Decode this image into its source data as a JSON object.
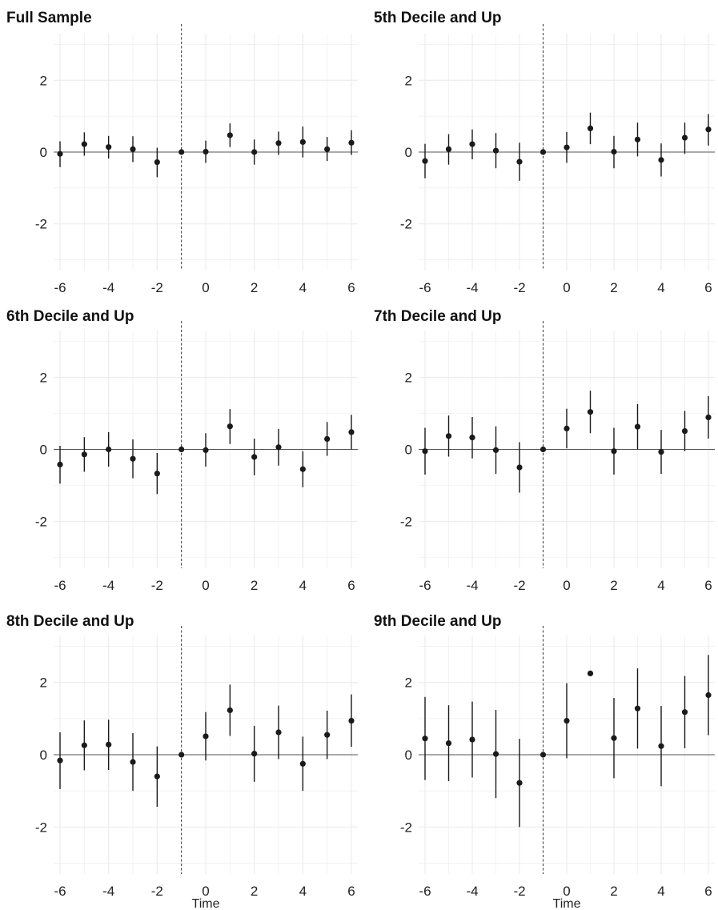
{
  "colors": {
    "grid": "#ebebeb",
    "zero_line": "#555555",
    "event_line": "#333333",
    "points": "#1a1a1a"
  },
  "chart_data": [
    {
      "type": "scatter",
      "title": "Full Sample",
      "xlabel": "",
      "ylabel": "",
      "xlim": [
        -6,
        6
      ],
      "ylim": [
        -3.3,
        3.3
      ],
      "xticks": [
        -6,
        -4,
        -2,
        0,
        2,
        4,
        6
      ],
      "yticks": [
        -2,
        0,
        2
      ],
      "event_line_x": -1,
      "grid": true,
      "x": [
        -6,
        -5,
        -4,
        -3,
        -2,
        -1,
        0,
        1,
        2,
        3,
        4,
        5,
        6
      ],
      "y": [
        -0.05,
        0.22,
        0.14,
        0.08,
        -0.28,
        0.0,
        0.01,
        0.47,
        0.0,
        0.25,
        0.28,
        0.08,
        0.26
      ],
      "lower": [
        -0.42,
        -0.1,
        -0.18,
        -0.28,
        -0.7,
        null,
        -0.3,
        0.14,
        -0.35,
        -0.08,
        -0.15,
        -0.25,
        -0.08
      ],
      "upper": [
        0.3,
        0.55,
        0.45,
        0.44,
        0.12,
        null,
        0.32,
        0.8,
        0.35,
        0.57,
        0.71,
        0.42,
        0.61
      ]
    },
    {
      "type": "scatter",
      "title": "5th Decile and Up",
      "xlabel": "",
      "ylabel": "",
      "xlim": [
        -6,
        6
      ],
      "ylim": [
        -3.3,
        3.3
      ],
      "xticks": [
        -6,
        -4,
        -2,
        0,
        2,
        4,
        6
      ],
      "yticks": [
        -2,
        0,
        2
      ],
      "event_line_x": -1,
      "grid": true,
      "x": [
        -6,
        -5,
        -4,
        -3,
        -2,
        -1,
        0,
        1,
        2,
        3,
        4,
        5,
        6
      ],
      "y": [
        -0.25,
        0.08,
        0.22,
        0.04,
        -0.27,
        0.0,
        0.13,
        0.66,
        0.01,
        0.35,
        -0.22,
        0.4,
        0.63
      ],
      "lower": [
        -0.73,
        -0.35,
        -0.2,
        -0.45,
        -0.8,
        null,
        -0.3,
        0.22,
        -0.45,
        -0.12,
        -0.68,
        -0.05,
        0.18
      ],
      "upper": [
        0.23,
        0.5,
        0.63,
        0.53,
        0.26,
        null,
        0.56,
        1.1,
        0.45,
        0.82,
        0.24,
        0.82,
        1.06
      ]
    },
    {
      "type": "scatter",
      "title": "6th Decile and Up",
      "xlabel": "",
      "ylabel": "",
      "xlim": [
        -6,
        6
      ],
      "ylim": [
        -3.3,
        3.3
      ],
      "xticks": [
        -6,
        -4,
        -2,
        0,
        2,
        4,
        6
      ],
      "yticks": [
        -2,
        0,
        2
      ],
      "event_line_x": -1,
      "grid": true,
      "x": [
        -6,
        -5,
        -4,
        -3,
        -2,
        -1,
        0,
        1,
        2,
        3,
        4,
        5,
        6
      ],
      "y": [
        -0.42,
        -0.14,
        0.0,
        -0.26,
        -0.67,
        0.0,
        -0.02,
        0.64,
        -0.21,
        0.06,
        -0.55,
        0.29,
        0.48
      ],
      "lower": [
        -0.95,
        -0.62,
        -0.48,
        -0.8,
        -1.24,
        null,
        -0.48,
        0.15,
        -0.72,
        -0.45,
        -1.05,
        -0.18,
        0.0
      ],
      "upper": [
        0.1,
        0.34,
        0.48,
        0.28,
        -0.1,
        null,
        0.45,
        1.12,
        0.3,
        0.57,
        -0.05,
        0.76,
        0.96
      ]
    },
    {
      "type": "scatter",
      "title": "7th Decile and Up",
      "xlabel": "",
      "ylabel": "",
      "xlim": [
        -6,
        6
      ],
      "ylim": [
        -3.3,
        3.3
      ],
      "xticks": [
        -6,
        -4,
        -2,
        0,
        2,
        4,
        6
      ],
      "yticks": [
        -2,
        0,
        2
      ],
      "event_line_x": -1,
      "grid": true,
      "x": [
        -6,
        -5,
        -4,
        -3,
        -2,
        -1,
        0,
        1,
        2,
        3,
        4,
        5,
        6
      ],
      "y": [
        -0.05,
        0.37,
        0.33,
        -0.02,
        -0.5,
        0.0,
        0.58,
        1.04,
        -0.05,
        0.63,
        -0.07,
        0.51,
        0.89
      ],
      "lower": [
        -0.7,
        -0.2,
        -0.25,
        -0.68,
        -1.2,
        null,
        0.03,
        0.45,
        -0.7,
        0.0,
        -0.68,
        -0.05,
        0.3
      ],
      "upper": [
        0.6,
        0.94,
        0.9,
        0.64,
        0.2,
        null,
        1.13,
        1.63,
        0.6,
        1.26,
        0.54,
        1.07,
        1.48
      ]
    },
    {
      "type": "scatter",
      "title": "8th Decile and Up",
      "xlabel": "Time",
      "ylabel": "",
      "xlim": [
        -6,
        6
      ],
      "ylim": [
        -3.3,
        3.3
      ],
      "xticks": [
        -6,
        -4,
        -2,
        0,
        2,
        4,
        6
      ],
      "yticks": [
        -2,
        0,
        2
      ],
      "event_line_x": -1,
      "grid": true,
      "x": [
        -6,
        -5,
        -4,
        -3,
        -2,
        -1,
        0,
        1,
        2,
        3,
        4,
        5,
        6
      ],
      "y": [
        -0.16,
        0.26,
        0.28,
        -0.2,
        -0.6,
        0.0,
        0.51,
        1.23,
        0.03,
        0.62,
        -0.25,
        0.55,
        0.94
      ],
      "lower": [
        -0.95,
        -0.43,
        -0.42,
        -1.0,
        -1.44,
        null,
        -0.16,
        0.52,
        -0.75,
        -0.12,
        -1.0,
        -0.12,
        0.22
      ],
      "upper": [
        0.62,
        0.95,
        0.97,
        0.6,
        0.23,
        null,
        1.18,
        1.94,
        0.8,
        1.36,
        0.5,
        1.22,
        1.67
      ]
    },
    {
      "type": "scatter",
      "title": "9th Decile and Up",
      "xlabel": "Time",
      "ylabel": "",
      "xlim": [
        -6,
        6
      ],
      "ylim": [
        -3.3,
        3.3
      ],
      "xticks": [
        -6,
        -4,
        -2,
        0,
        2,
        4,
        6
      ],
      "yticks": [
        -2,
        0,
        2
      ],
      "event_line_x": -1,
      "grid": true,
      "x": [
        -6,
        -5,
        -4,
        -3,
        -2,
        -1,
        0,
        1,
        2,
        3,
        4,
        5,
        6
      ],
      "y": [
        0.45,
        0.32,
        0.42,
        0.02,
        -0.78,
        0.0,
        0.94,
        2.25,
        0.46,
        1.28,
        0.24,
        1.18,
        1.65
      ],
      "lower": [
        -0.7,
        -0.73,
        -0.63,
        -1.2,
        -2.0,
        null,
        -0.1,
        null,
        -0.65,
        0.17,
        -0.87,
        0.18,
        0.54
      ],
      "upper": [
        1.6,
        1.37,
        1.47,
        1.24,
        0.44,
        null,
        1.98,
        null,
        1.57,
        2.39,
        1.35,
        2.18,
        2.76
      ]
    }
  ]
}
